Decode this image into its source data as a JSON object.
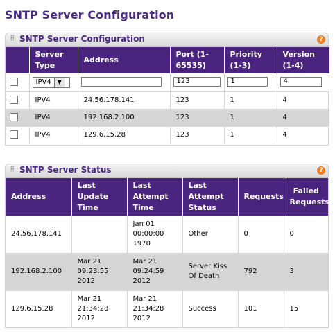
{
  "page": {
    "title": "SNTP Server Configuration"
  },
  "config_panel": {
    "title": "SNTP Server Configuration",
    "help": "?",
    "headers": {
      "server_type": "Server Type",
      "address": "Address",
      "port": "Port (1-65535)",
      "priority": "Priority (1-3)",
      "version": "Version (1-4)"
    },
    "input_row": {
      "server_type": "IPV4",
      "address": "",
      "port": "123",
      "priority": "1",
      "version": "4"
    },
    "rows": [
      {
        "server_type": "IPV4",
        "address": "24.56.178.141",
        "port": "123",
        "priority": "1",
        "version": "4"
      },
      {
        "server_type": "IPV4",
        "address": "192.168.2.100",
        "port": "123",
        "priority": "1",
        "version": "4"
      },
      {
        "server_type": "IPV4",
        "address": "129.6.15.28",
        "port": "123",
        "priority": "1",
        "version": "4"
      }
    ]
  },
  "status_panel": {
    "title": "SNTP Server Status",
    "help": "?",
    "headers": {
      "address": "Address",
      "last_update": "Last Update Time",
      "last_attempt": "Last Attempt Time",
      "last_status": "Last Attempt Status",
      "requests": "Requests",
      "failed": "Failed Requests"
    },
    "rows": [
      {
        "address": "24.56.178.141",
        "last_update": "",
        "last_attempt": "Jan 01 00:00:00 1970",
        "last_status": "Other",
        "requests": "0",
        "failed": "0"
      },
      {
        "address": "192.168.2.100",
        "last_update": "Mar 21 09:23:55 2012",
        "last_attempt": "Mar 21 09:24:59 2012",
        "last_status": "Server Kiss Of Death",
        "requests": "792",
        "failed": "3"
      },
      {
        "address": "129.6.15.28",
        "last_update": "Mar 21 21:34:28 2012",
        "last_attempt": "Mar 21 21:34:28 2012",
        "last_status": "Success",
        "requests": "101",
        "failed": "15"
      }
    ]
  }
}
